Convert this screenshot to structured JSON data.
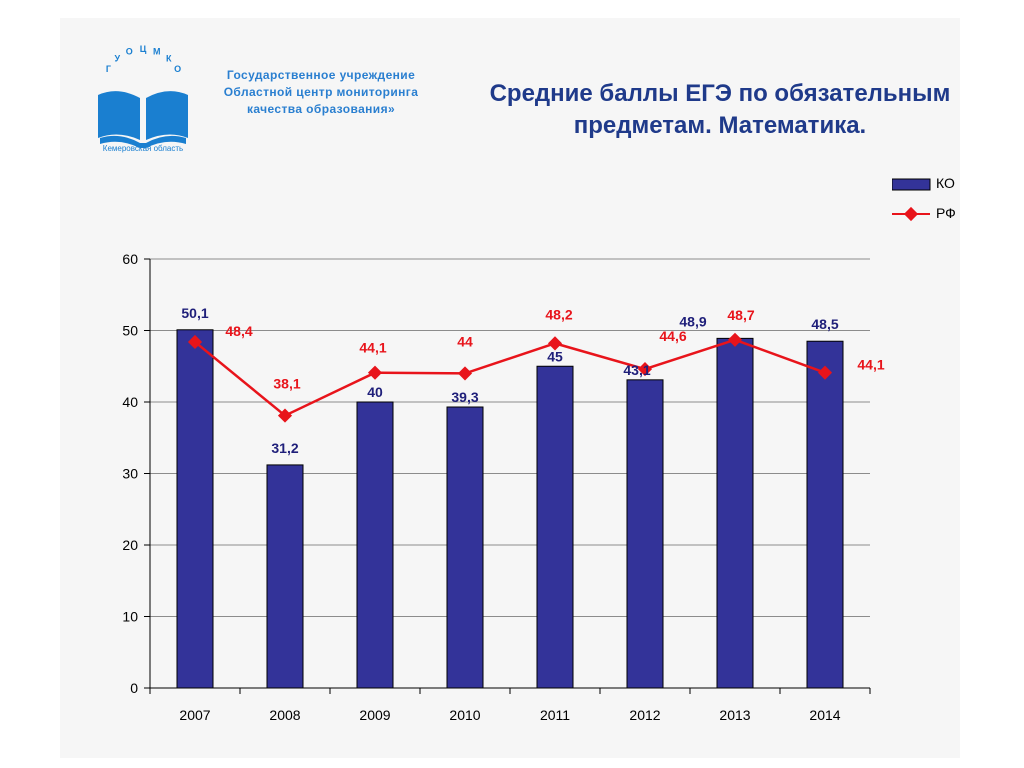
{
  "header": {
    "org_line_1": "Государственное учреждение",
    "org_line_2": "Областной центр мониторинга",
    "org_line_3": "качества образования»",
    "logo_letters": "ГУОЦМКО",
    "logo_caption": "Кемеровская область",
    "title_line_1": "Средние баллы ЕГЭ по обязательным",
    "title_line_2": "предметам. Математика."
  },
  "colors": {
    "ko_bar": "#333399",
    "rf_line": "#e8141b",
    "title": "#1f3a8a",
    "org": "#2a7fd0",
    "grid": "#8c8c8c"
  },
  "chart_data": {
    "type": "bar",
    "categories": [
      "2007",
      "2008",
      "2009",
      "2010",
      "2011",
      "2012",
      "2013",
      "2014"
    ],
    "series": [
      {
        "name": "КО",
        "type": "bar",
        "values": [
          50.1,
          31.2,
          40,
          39.3,
          45,
          43.1,
          48.9,
          48.5
        ],
        "labels": [
          "50,1",
          "31,2",
          "40",
          "39,3",
          "45",
          "43,1",
          "48,9",
          "48,5"
        ]
      },
      {
        "name": "РФ",
        "type": "line",
        "values": [
          48.4,
          38.1,
          44.1,
          44,
          48.2,
          44.6,
          48.7,
          44.1
        ],
        "labels": [
          "48,4",
          "38,1",
          "44,1",
          "44",
          "48,2",
          "44,6",
          "48,7",
          "44,1"
        ]
      }
    ],
    "ylim": [
      0,
      60
    ],
    "yticks": [
      "0",
      "10",
      "20",
      "30",
      "40",
      "50",
      "60"
    ],
    "grid": true,
    "legend": "top-right"
  }
}
